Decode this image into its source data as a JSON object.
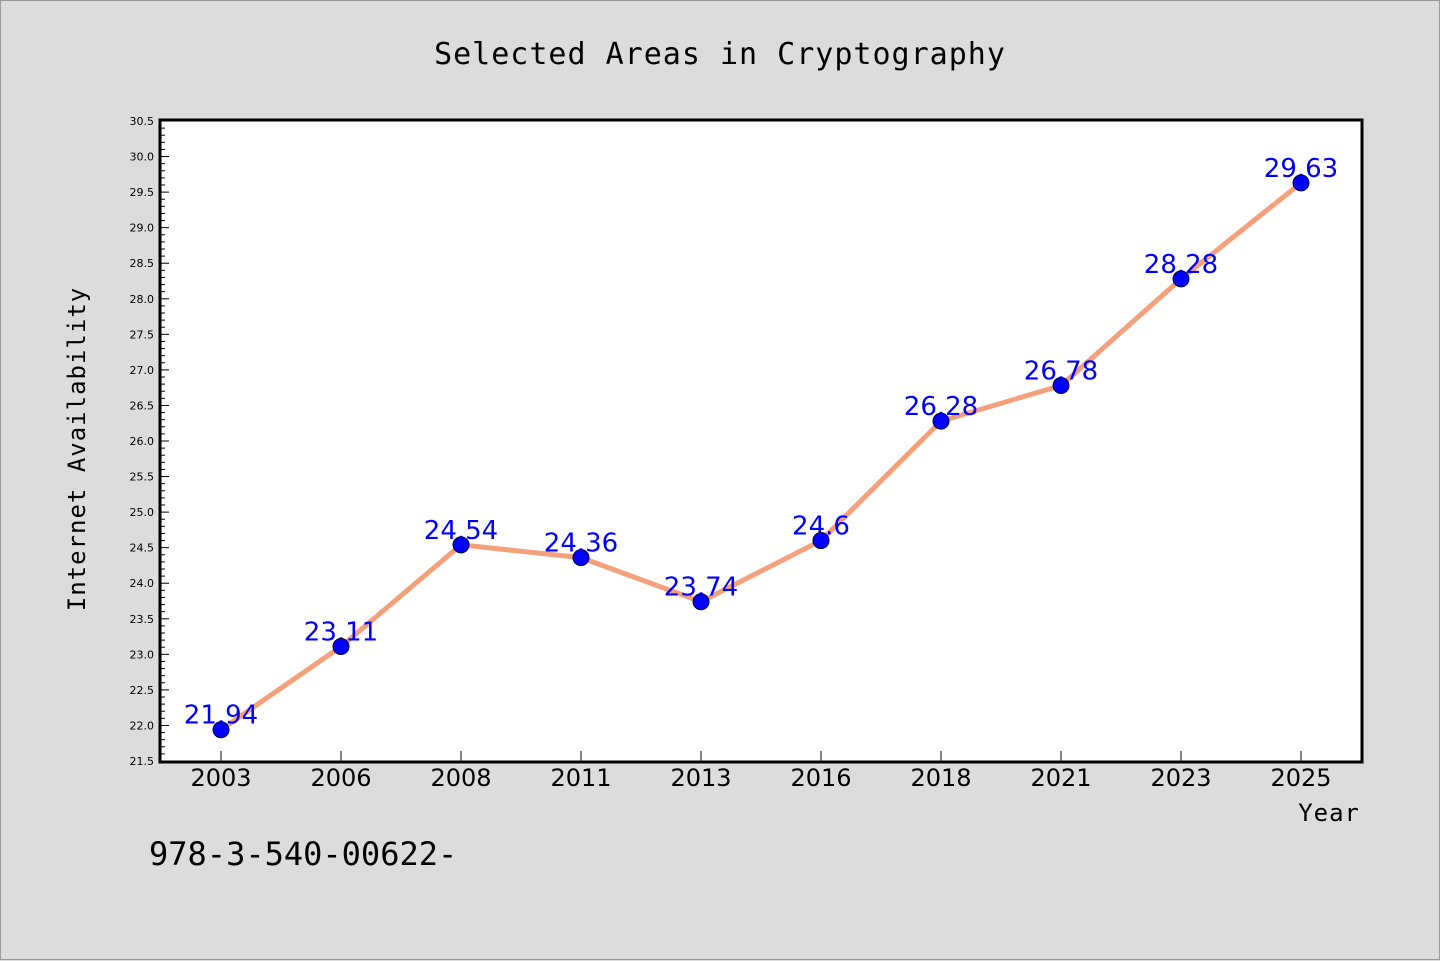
{
  "chart_data": {
    "type": "line",
    "title": "Selected Areas in Cryptography",
    "xlabel": "Year",
    "ylabel": "Internet Availability",
    "categories": [
      "2003",
      "2006",
      "2008",
      "2011",
      "2013",
      "2016",
      "2018",
      "2021",
      "2023",
      "2025"
    ],
    "series": [
      {
        "values": [
          21.94,
          23.11,
          24.54,
          24.36,
          23.74,
          24.6,
          26.28,
          26.78,
          28.28,
          29.63
        ],
        "data_labels": [
          "21.94",
          "23.11",
          "24.54",
          "24.36",
          "23.74",
          "24.6",
          "26.28",
          "26.78",
          "28.28",
          "29.63"
        ],
        "line_color": "#f4a07a",
        "marker_color": "#0000ff"
      }
    ],
    "ylim": [
      21.5,
      30.5
    ],
    "yticks": [
      "21.5",
      "22.0",
      "22.5",
      "23.0",
      "23.5",
      "24.0",
      "24.5",
      "25.0",
      "25.5",
      "26.0",
      "26.5",
      "27.0",
      "27.5",
      "28.0",
      "28.5",
      "29.0",
      "29.5",
      "30.0",
      "30.5"
    ],
    "grid": false,
    "legend": "none"
  },
  "footer_text": "978-3-540-00622-",
  "colors": {
    "background": "#dcdcdc",
    "plot_background": "#ffffff",
    "data_label": "#0000ff"
  }
}
